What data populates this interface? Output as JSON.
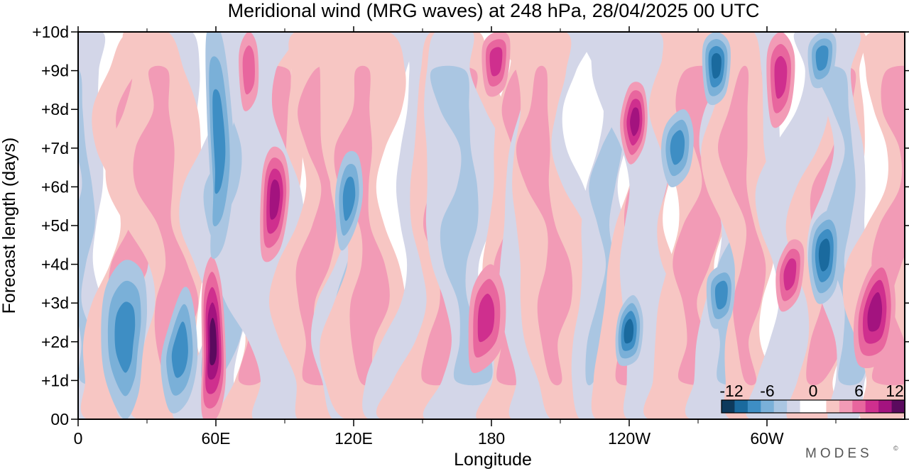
{
  "chart_data": {
    "type": "contour",
    "title": "Meridional wind (MRG waves) at  248 hPa,  28/04/2025  00 UTC",
    "xlabel": "Longitude",
    "ylabel": "Forecast length (days)",
    "x_ticks": [
      {
        "lon": 0,
        "label": "0"
      },
      {
        "lon": 60,
        "label": "60E"
      },
      {
        "lon": 120,
        "label": "120E"
      },
      {
        "lon": 180,
        "label": "180"
      },
      {
        "lon": 240,
        "label": "120W"
      },
      {
        "lon": 300,
        "label": "60W"
      }
    ],
    "x_minor_ticks": [
      30,
      90,
      150,
      210,
      270,
      330
    ],
    "xlim": [
      0,
      360
    ],
    "y_ticks": [
      {
        "day": 0,
        "label": "00"
      },
      {
        "day": 1,
        "label": "+1d"
      },
      {
        "day": 2,
        "label": "+2d"
      },
      {
        "day": 3,
        "label": "+3d"
      },
      {
        "day": 4,
        "label": "+4d"
      },
      {
        "day": 5,
        "label": "+5d"
      },
      {
        "day": 6,
        "label": "+6d"
      },
      {
        "day": 7,
        "label": "+7d"
      },
      {
        "day": 8,
        "label": "+8d"
      },
      {
        "day": 9,
        "label": "+9d"
      },
      {
        "day": 10,
        "label": "+10d"
      }
    ],
    "ylim": [
      0,
      10
    ],
    "colorbar": {
      "labels": [
        "-12",
        "-6",
        "0",
        "6",
        "12"
      ],
      "colors": [
        "#0d3a5c",
        "#1a6a9e",
        "#3e8ec4",
        "#7ab0d8",
        "#aac6e2",
        "#d3d6e8",
        "#ffffff",
        "#ffffff",
        "#f7c6c3",
        "#f29bb6",
        "#e8669e",
        "#cf2f8e",
        "#a3137f",
        "#5a0a5e"
      ]
    },
    "features": [
      {
        "sign": "neg",
        "level": 3,
        "path": [
          [
            20,
            0
          ],
          [
            26,
            0.6
          ],
          [
            28,
            1.6
          ],
          [
            30,
            2.8
          ],
          [
            28,
            3.8
          ],
          [
            20,
            4.1
          ],
          [
            12,
            3.4
          ],
          [
            10,
            2.2
          ],
          [
            12,
            1.0
          ]
        ]
      },
      {
        "sign": "neg",
        "level": 3,
        "path": [
          [
            40,
            0.2
          ],
          [
            48,
            0.5
          ],
          [
            52,
            1.6
          ],
          [
            50,
            3.0
          ],
          [
            46,
            3.4
          ],
          [
            40,
            2.5
          ],
          [
            36,
            1.4
          ]
        ]
      },
      {
        "sign": "pos",
        "level": 5,
        "path": [
          [
            54,
            0.1
          ],
          [
            60,
            0
          ],
          [
            64,
            0.8
          ],
          [
            64,
            2.2
          ],
          [
            62,
            3.6
          ],
          [
            58,
            4.2
          ],
          [
            54,
            3.4
          ],
          [
            54,
            1.6
          ]
        ]
      },
      {
        "sign": "neg",
        "level": 3,
        "path": [
          [
            58,
            4.2
          ],
          [
            64,
            4.6
          ],
          [
            68,
            6.4
          ],
          [
            66,
            8.5
          ],
          [
            62,
            10
          ],
          [
            56,
            10
          ],
          [
            56,
            8.0
          ],
          [
            58,
            5.6
          ]
        ]
      },
      {
        "sign": "pos",
        "level": 4,
        "path": [
          [
            80,
            4.2
          ],
          [
            88,
            4.4
          ],
          [
            92,
            5.8
          ],
          [
            90,
            6.8
          ],
          [
            84,
            7.0
          ],
          [
            80,
            6.2
          ]
        ]
      },
      {
        "sign": "pos",
        "level": 2,
        "path": [
          [
            72,
            8.0
          ],
          [
            78,
            8.4
          ],
          [
            78,
            9.6
          ],
          [
            74,
            10
          ],
          [
            70,
            9.4
          ]
        ]
      },
      {
        "sign": "neg",
        "level": 3,
        "path": [
          [
            114,
            4.4
          ],
          [
            120,
            4.8
          ],
          [
            124,
            5.8
          ],
          [
            122,
            6.8
          ],
          [
            116,
            6.8
          ],
          [
            112,
            5.8
          ]
        ]
      },
      {
        "sign": "pos",
        "level": 3,
        "path": [
          [
            172,
            1.2
          ],
          [
            184,
            1.8
          ],
          [
            186,
            3.2
          ],
          [
            180,
            4.0
          ],
          [
            172,
            3.4
          ],
          [
            170,
            2.2
          ]
        ]
      },
      {
        "sign": "pos",
        "level": 3,
        "path": [
          [
            178,
            8.4
          ],
          [
            186,
            8.6
          ],
          [
            188,
            9.8
          ],
          [
            182,
            10
          ],
          [
            176,
            9.6
          ]
        ]
      },
      {
        "sign": "pos",
        "level": 4,
        "path": [
          [
            240,
            6.6
          ],
          [
            246,
            7.0
          ],
          [
            248,
            7.8
          ],
          [
            246,
            8.6
          ],
          [
            240,
            8.6
          ],
          [
            236,
            7.6
          ]
        ]
      },
      {
        "sign": "neg",
        "level": 4,
        "path": [
          [
            236,
            1.4
          ],
          [
            244,
            1.6
          ],
          [
            246,
            2.6
          ],
          [
            242,
            3.2
          ],
          [
            236,
            2.8
          ],
          [
            234,
            2.0
          ]
        ]
      },
      {
        "sign": "neg",
        "level": 3,
        "path": [
          [
            258,
            6.0
          ],
          [
            266,
            6.4
          ],
          [
            268,
            7.4
          ],
          [
            264,
            8.0
          ],
          [
            256,
            7.6
          ],
          [
            254,
            6.8
          ]
        ]
      },
      {
        "sign": "neg",
        "level": 4,
        "path": [
          [
            274,
            8.2
          ],
          [
            282,
            8.4
          ],
          [
            284,
            9.6
          ],
          [
            278,
            10
          ],
          [
            272,
            9.6
          ]
        ]
      },
      {
        "sign": "neg",
        "level": 3,
        "path": [
          [
            276,
            2.4
          ],
          [
            284,
            2.6
          ],
          [
            286,
            3.6
          ],
          [
            282,
            4.0
          ],
          [
            274,
            3.6
          ]
        ]
      },
      {
        "sign": "pos",
        "level": 3,
        "path": [
          [
            306,
            2.8
          ],
          [
            314,
            3.2
          ],
          [
            316,
            4.4
          ],
          [
            310,
            4.6
          ],
          [
            304,
            3.8
          ]
        ]
      },
      {
        "sign": "pos",
        "level": 3,
        "path": [
          [
            302,
            7.6
          ],
          [
            310,
            8.0
          ],
          [
            312,
            9.4
          ],
          [
            306,
            10
          ],
          [
            300,
            9.4
          ]
        ]
      },
      {
        "sign": "neg",
        "level": 4,
        "path": [
          [
            322,
            3.0
          ],
          [
            330,
            3.4
          ],
          [
            332,
            4.8
          ],
          [
            328,
            5.4
          ],
          [
            320,
            5.0
          ],
          [
            318,
            4.0
          ]
        ]
      },
      {
        "sign": "neg",
        "level": 3,
        "path": [
          [
            320,
            8.6
          ],
          [
            328,
            8.8
          ],
          [
            330,
            9.8
          ],
          [
            324,
            10
          ],
          [
            318,
            9.6
          ]
        ]
      },
      {
        "sign": "pos",
        "level": 4,
        "path": [
          [
            340,
            1.4
          ],
          [
            352,
            1.6
          ],
          [
            356,
            3.0
          ],
          [
            352,
            4.2
          ],
          [
            344,
            3.8
          ],
          [
            338,
            2.6
          ]
        ]
      }
    ]
  },
  "brand": {
    "text": "MODES",
    "mark": "©"
  }
}
